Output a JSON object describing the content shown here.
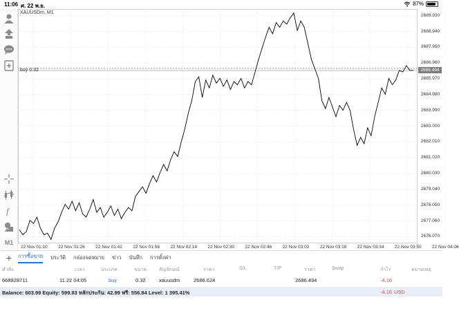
{
  "status_bar": {
    "time": "11:06",
    "date": "ศ. 22 พ.ย.",
    "battery": "87%",
    "battery_level": 0.87,
    "icons": [
      "wifi-icon",
      "battery-icon"
    ]
  },
  "chart": {
    "symbol": "XAUUSDm, M1",
    "buy_label": "buy 0.32",
    "current_price_tag": "2686.494"
  },
  "left_toolbar": {
    "items": [
      "account-icon",
      "trade-icon",
      "chat-icon",
      "add-chart-icon",
      "crosshair-icon",
      "indicators-icon",
      "function-icon",
      "objects-icon"
    ],
    "timeframe": "M1"
  },
  "chart_data": {
    "type": "line",
    "title": "XAUUSDm, M1",
    "x_labels": [
      "22 Nov 01:10",
      "22 Nov 01:26",
      "22 Nov 01:42",
      "22 Nov 01:58",
      "22 Nov 02:14",
      "22 Nov 02:30",
      "22 Nov 02:46",
      "22 Nov 03:02",
      "22 Nov 03:18",
      "22 Nov 03:34",
      "22 Nov 03:50",
      "22 Nov 04:06"
    ],
    "y_ticks": [
      "2689.930",
      "2688.940",
      "2687.950",
      "2686.960",
      "2685.970",
      "2684.980",
      "2683.990",
      "2683.000",
      "2682.010",
      "2681.020",
      "2680.030",
      "2679.040",
      "2678.050",
      "2677.060",
      "2676.070"
    ],
    "ylim": [
      2675.7,
      2690.35
    ],
    "buy_price": 2686.624,
    "current_price": 2686.494,
    "series": [
      {
        "values": [
          2676.5,
          2676.2,
          2676.4,
          2677.1,
          2676.9,
          2677.3,
          2676.6,
          2676.2,
          2676.3,
          2675.9,
          2676.6,
          2677.0,
          2677.6,
          2678.1,
          2677.8,
          2678.3,
          2677.7,
          2678.2,
          2677.5,
          2677.3,
          2677.8,
          2678.4,
          2677.6,
          2677.9,
          2677.3,
          2677.6,
          2678.0,
          2677.4,
          2677.8,
          2677.2,
          2677.6,
          2677.9,
          2677.7,
          2678.6,
          2678.9,
          2679.2,
          2678.8,
          2679.4,
          2679.9,
          2679.5,
          2680.1,
          2680.6,
          2680.2,
          2680.9,
          2681.4,
          2681.1,
          2682.0,
          2682.8,
          2683.8,
          2684.6,
          2685.8,
          2686.1,
          2684.8,
          2685.9,
          2685.4,
          2686.2,
          2685.7,
          2686.0,
          2685.5,
          2685.9,
          2685.3,
          2685.8,
          2685.6,
          2686.0,
          2685.4,
          2685.8,
          2685.6,
          2686.4,
          2687.2,
          2687.9,
          2688.6,
          2689.2,
          2688.8,
          2689.5,
          2689.2,
          2689.6,
          2689.4,
          2689.8,
          2690.1,
          2689.0,
          2689.6,
          2689.2,
          2688.2,
          2687.2,
          2686.6,
          2686.0,
          2684.6,
          2684.1,
          2684.8,
          2684.2,
          2683.6,
          2684.3,
          2684.0,
          2684.5,
          2684.0,
          2682.8,
          2681.8,
          2682.3,
          2681.9,
          2682.9,
          2682.4,
          2683.6,
          2684.5,
          2685.4,
          2685.0,
          2686.0,
          2685.6,
          2685.9,
          2686.5,
          2686.4,
          2686.8,
          2686.5,
          2686.5
        ]
      }
    ]
  },
  "bottom_tabs": {
    "add_label": "+",
    "items": [
      "การซื้อขาย",
      "ประวัติ",
      "กล่องจดหมาย",
      "ข่าว",
      "บันทึก",
      "การตั้งค่า"
    ]
  },
  "positions": {
    "headers": [
      "คำสั่ง",
      "เวลา",
      "ประเภท",
      "ขนาด",
      "สัญลักษณ์",
      "ราคา",
      "S/L",
      "T/P",
      "ราคา",
      "Swap",
      "กำไร",
      "หมายเหตุ"
    ],
    "rows": [
      [
        "668928711",
        "11.22 04:05",
        "buy",
        "0.32",
        "xauusdm",
        "2686.624",
        "",
        "",
        "2686.494",
        "",
        "-4.16",
        ""
      ]
    ]
  },
  "account": {
    "summary": "Balance: 603.99 Equity: 599.83 หลักประกัน: 42.99 ฟรี: 556.84 Level: 1 395.41%",
    "profit": "-4.16",
    "currency": "USD"
  },
  "colors": {
    "accent": "#2a6edc",
    "loss": "#e04b4b",
    "price_line": "#000000",
    "grid": "#e3e3e3"
  }
}
